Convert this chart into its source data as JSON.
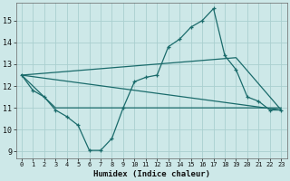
{
  "xlabel": "Humidex (Indice chaleur)",
  "bg_color": "#cde8e8",
  "grid_color": "#aacfcf",
  "line_color": "#1a6b6b",
  "xlim": [
    -0.5,
    23.5
  ],
  "ylim": [
    8.7,
    15.8
  ],
  "xticks": [
    0,
    1,
    2,
    3,
    4,
    5,
    6,
    7,
    8,
    9,
    10,
    11,
    12,
    13,
    14,
    15,
    16,
    17,
    18,
    19,
    20,
    21,
    22,
    23
  ],
  "yticks": [
    9,
    10,
    11,
    12,
    13,
    14,
    15
  ],
  "main_x": [
    0,
    1,
    2,
    3,
    4,
    5,
    6,
    7,
    8,
    9,
    10,
    11,
    12,
    13,
    14,
    15,
    16,
    17,
    18,
    19,
    20,
    21,
    22,
    23
  ],
  "main_y": [
    12.5,
    11.8,
    11.5,
    10.9,
    10.6,
    10.2,
    9.05,
    9.05,
    9.6,
    11.0,
    12.2,
    12.4,
    12.5,
    13.8,
    14.15,
    14.7,
    15.0,
    15.55,
    13.4,
    12.75,
    11.5,
    11.3,
    10.9,
    10.9
  ],
  "line2_x": [
    0,
    3,
    23
  ],
  "line2_y": [
    12.5,
    11.0,
    11.0
  ],
  "line3_x": [
    0,
    23
  ],
  "line3_y": [
    12.5,
    10.9
  ],
  "line4_x": [
    0,
    19,
    23
  ],
  "line4_y": [
    12.5,
    13.3,
    10.9
  ]
}
